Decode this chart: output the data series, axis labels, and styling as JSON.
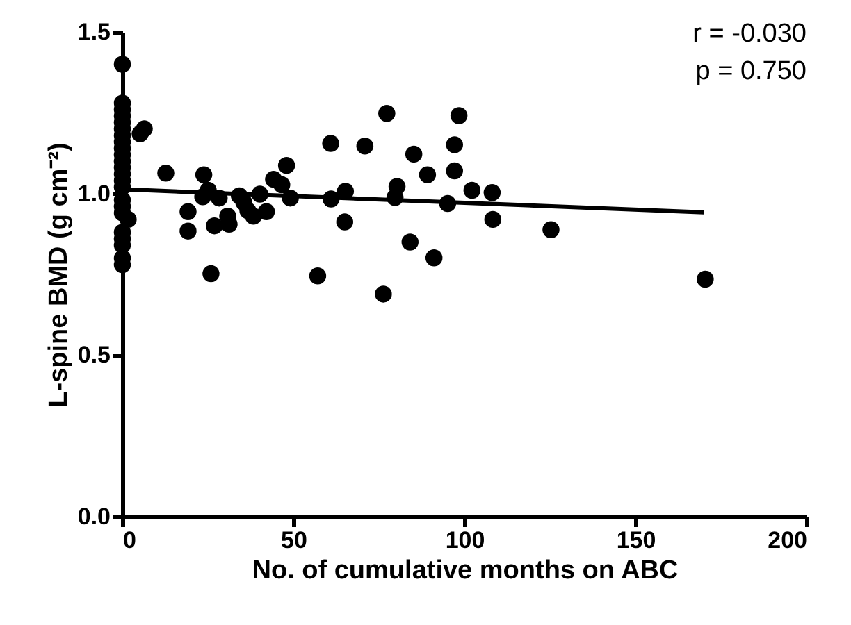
{
  "chart_data": {
    "type": "scatter",
    "xlabel": "No. of cumulative months on ABC",
    "ylabel": "L-spine BMD (g cm⁻²)",
    "xlim": [
      0,
      200
    ],
    "xticks": [
      0,
      50,
      100,
      150,
      200
    ],
    "ylim": [
      0,
      1.5
    ],
    "yticks": [
      {
        "value": 0,
        "label": "0.0"
      },
      {
        "value": 0.5,
        "label": "0.5"
      },
      {
        "value": 1.0,
        "label": "1.0"
      },
      {
        "value": 1.5,
        "label": "1.5"
      }
    ],
    "grid": false,
    "annotations": [
      "r =  -0.030",
      "p = 0.750"
    ],
    "series": [
      {
        "marker": "circle",
        "color": "#000000",
        "x": [
          0,
          0,
          0,
          0,
          0,
          0,
          0,
          0,
          0,
          0,
          0,
          0,
          0,
          0,
          0,
          0,
          0,
          0,
          0,
          0,
          0,
          0,
          0,
          1.7,
          5.2,
          6.4,
          12.7,
          23.8,
          19.2,
          19.2,
          25.9,
          23.5,
          25.1,
          28.3,
          26.9,
          31.2,
          30.8,
          34.2,
          35.5,
          38.3,
          36.7,
          40.2,
          42.1,
          44.2,
          46.6,
          48,
          49.1,
          57.1,
          60.9,
          61,
          65.2,
          65,
          70.9,
          77.3,
          76.3,
          79.7,
          80.3,
          85.2,
          84.1,
          89.2,
          91.1,
          95.1,
          97.1,
          97.1,
          98.4,
          102.2,
          108.1,
          108.3,
          125.3,
          170.4
        ],
        "values": [
          1.4,
          1.28,
          1.26,
          1.24,
          1.22,
          1.2,
          1.18,
          1.16,
          1.14,
          1.12,
          1.1,
          1.08,
          1.06,
          1.04,
          1.02,
          0.98,
          0.96,
          0.94,
          0.88,
          0.86,
          0.84,
          0.8,
          0.78,
          0.92,
          1.185,
          1.2,
          1.063,
          1.058,
          0.944,
          0.884,
          0.752,
          0.99,
          1.01,
          0.986,
          0.9,
          0.905,
          0.93,
          0.993,
          0.973,
          0.93,
          0.947,
          0.998,
          0.944,
          1.044,
          1.027,
          1.087,
          0.986,
          0.745,
          1.155,
          0.983,
          1.007,
          0.912,
          1.147,
          1.248,
          0.689,
          0.988,
          1.022,
          1.122,
          0.85,
          1.058,
          0.801,
          0.969,
          1.151,
          1.07,
          1.241,
          1.01,
          1.003,
          0.92,
          0.888,
          0.735
        ]
      },
      {
        "type": "line",
        "marker": "none",
        "line_style": "solid",
        "color": "#000000",
        "x": [
          0,
          170
        ],
        "values": [
          1.013,
          0.942
        ]
      }
    ]
  }
}
